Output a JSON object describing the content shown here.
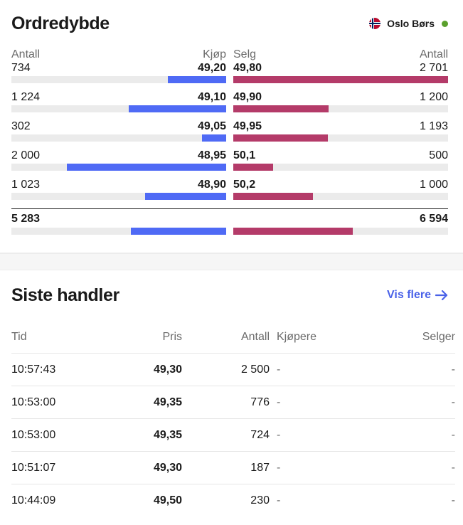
{
  "orderbook": {
    "title": "Ordredybde",
    "exchange": "Oslo Børs",
    "headers": {
      "bid_qty": "Antall",
      "bid_price": "Kjøp",
      "ask_price": "Selg",
      "ask_qty": "Antall"
    },
    "max_qty": 2701,
    "rows": [
      {
        "bid_qty": "734",
        "bid_price": "49,20",
        "ask_price": "49,80",
        "ask_qty": "2 701",
        "bid_val": 734,
        "ask_val": 2701
      },
      {
        "bid_qty": "1 224",
        "bid_price": "49,10",
        "ask_price": "49,90",
        "ask_qty": "1 200",
        "bid_val": 1224,
        "ask_val": 1200
      },
      {
        "bid_qty": "302",
        "bid_price": "49,05",
        "ask_price": "49,95",
        "ask_qty": "1 193",
        "bid_val": 302,
        "ask_val": 1193
      },
      {
        "bid_qty": "2 000",
        "bid_price": "48,95",
        "ask_price": "50,1",
        "ask_qty": "500",
        "bid_val": 2000,
        "ask_val": 500
      },
      {
        "bid_qty": "1 023",
        "bid_price": "48,90",
        "ask_price": "50,2",
        "ask_qty": "1 000",
        "bid_val": 1023,
        "ask_val": 1000
      }
    ],
    "totals": {
      "bid": "5 283",
      "ask": "6 594",
      "bid_share": 0.445,
      "ask_share": 0.555
    },
    "colors": {
      "bid": "#4f6af5",
      "ask": "#b43b69",
      "live": "#5aa02c"
    }
  },
  "trades": {
    "title": "Siste handler",
    "more_label": "Vis flere",
    "columns": {
      "time": "Tid",
      "price": "Pris",
      "qty": "Antall",
      "buyer": "Kjøpere",
      "seller": "Selger"
    },
    "rows": [
      {
        "time": "10:57:43",
        "price": "49,30",
        "qty": "2 500",
        "buyer": "-",
        "seller": "-"
      },
      {
        "time": "10:53:00",
        "price": "49,35",
        "qty": "776",
        "buyer": "-",
        "seller": "-"
      },
      {
        "time": "10:53:00",
        "price": "49,35",
        "qty": "724",
        "buyer": "-",
        "seller": "-"
      },
      {
        "time": "10:51:07",
        "price": "49,30",
        "qty": "187",
        "buyer": "-",
        "seller": "-"
      },
      {
        "time": "10:44:09",
        "price": "49,50",
        "qty": "230",
        "buyer": "-",
        "seller": "-"
      }
    ]
  }
}
